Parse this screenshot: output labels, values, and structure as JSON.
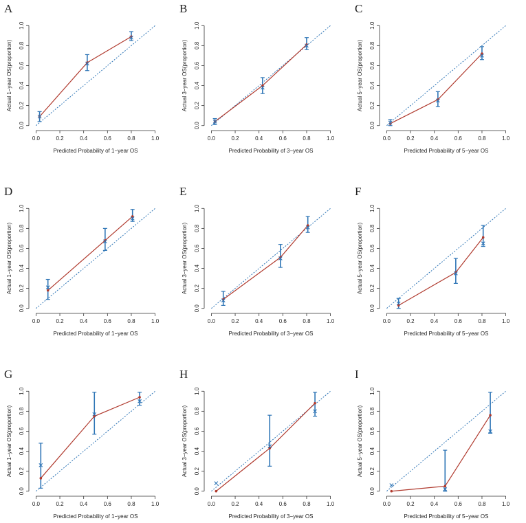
{
  "chart_data": [
    {
      "type": "line",
      "label": "A",
      "xlabel": "Predicted Probability of 1−year OS",
      "ylabel": "Actual 1−year OS(proportion)",
      "xlim": [
        -0.06,
        1.06
      ],
      "ylim": [
        -0.05,
        1.05
      ],
      "xticks": [
        {
          "value": 0,
          "label": "0.0"
        },
        {
          "value": 0.2,
          "label": "0.2"
        },
        {
          "value": 0.4,
          "label": "0.4"
        },
        {
          "value": 0.6,
          "label": "0.6"
        },
        {
          "value": 0.8,
          "label": "0.8"
        },
        {
          "value": 1,
          "label": "1.0"
        }
      ],
      "yticks": [
        {
          "value": 0,
          "label": "0.0"
        },
        {
          "value": 0.2,
          "label": "0.2"
        },
        {
          "value": 0.4,
          "label": "0.4"
        },
        {
          "value": 0.6,
          "label": "0.6"
        },
        {
          "value": 0.8,
          "label": "0.8"
        },
        {
          "value": 1,
          "label": "1.0"
        }
      ],
      "x": [
        0.03,
        0.43,
        0.8
      ],
      "reference_color": "#2e75b6",
      "series": [
        {
          "color": "#b03a2e",
          "values": [
            0.09,
            0.63,
            0.89
          ],
          "error_low": [
            0.04,
            0.55,
            0.85
          ],
          "error_high": [
            0.14,
            0.71,
            0.94
          ]
        },
        {
          "color": "#2e75b6",
          "values": [
            0.09,
            0.62,
            0.88
          ]
        }
      ]
    },
    {
      "type": "line",
      "label": "B",
      "xlabel": "Predicted Probability of 3−year OS",
      "ylabel": "Actual 3−year OS(proportion)",
      "xlim": [
        -0.06,
        1.06
      ],
      "ylim": [
        -0.05,
        1.05
      ],
      "xticks": [
        {
          "value": 0,
          "label": "0.0"
        },
        {
          "value": 0.2,
          "label": "0.2"
        },
        {
          "value": 0.4,
          "label": "0.4"
        },
        {
          "value": 0.6,
          "label": "0.6"
        },
        {
          "value": 0.8,
          "label": "0.8"
        },
        {
          "value": 1,
          "label": "1.0"
        }
      ],
      "yticks": [
        {
          "value": 0,
          "label": "0.0"
        },
        {
          "value": 0.2,
          "label": "0.2"
        },
        {
          "value": 0.4,
          "label": "0.4"
        },
        {
          "value": 0.6,
          "label": "0.6"
        },
        {
          "value": 0.8,
          "label": "0.8"
        },
        {
          "value": 1,
          "label": "1.0"
        }
      ],
      "x": [
        0.03,
        0.43,
        0.8
      ],
      "reference_color": "#2e75b6",
      "series": [
        {
          "color": "#b03a2e",
          "values": [
            0.04,
            0.4,
            0.81
          ],
          "error_low": [
            0.01,
            0.32,
            0.76
          ],
          "error_high": [
            0.07,
            0.48,
            0.88
          ]
        },
        {
          "color": "#2e75b6",
          "values": [
            0.04,
            0.38,
            0.8
          ]
        }
      ]
    },
    {
      "type": "line",
      "label": "C",
      "xlabel": "Predicted Probability of 5−year OS",
      "ylabel": "Actual 5−year OS(proportion)",
      "xlim": [
        -0.06,
        1.06
      ],
      "ylim": [
        -0.05,
        1.05
      ],
      "xticks": [
        {
          "value": 0,
          "label": "0.0"
        },
        {
          "value": 0.2,
          "label": "0.2"
        },
        {
          "value": 0.4,
          "label": "0.4"
        },
        {
          "value": 0.6,
          "label": "0.6"
        },
        {
          "value": 0.8,
          "label": "0.8"
        },
        {
          "value": 1,
          "label": "1.0"
        }
      ],
      "yticks": [
        {
          "value": 0,
          "label": "0.0"
        },
        {
          "value": 0.2,
          "label": "0.2"
        },
        {
          "value": 0.4,
          "label": "0.4"
        },
        {
          "value": 0.6,
          "label": "0.6"
        },
        {
          "value": 0.8,
          "label": "0.8"
        },
        {
          "value": 1,
          "label": "1.0"
        }
      ],
      "x": [
        0.03,
        0.43,
        0.8
      ],
      "reference_color": "#2e75b6",
      "series": [
        {
          "color": "#b03a2e",
          "values": [
            0.02,
            0.26,
            0.72
          ],
          "error_low": [
            0,
            0.19,
            0.66
          ],
          "error_high": [
            0.06,
            0.34,
            0.79
          ]
        },
        {
          "color": "#2e75b6",
          "values": [
            0.03,
            0.25,
            0.7
          ]
        }
      ]
    },
    {
      "type": "line",
      "label": "D",
      "xlabel": "Predicted Probability of 1−year OS",
      "ylabel": "Actual 1−year OS(proportion)",
      "xlim": [
        -0.06,
        1.06
      ],
      "ylim": [
        -0.05,
        1.05
      ],
      "xticks": [
        {
          "value": 0,
          "label": "0.0"
        },
        {
          "value": 0.2,
          "label": "0.2"
        },
        {
          "value": 0.4,
          "label": "0.4"
        },
        {
          "value": 0.6,
          "label": "0.6"
        },
        {
          "value": 0.8,
          "label": "0.8"
        },
        {
          "value": 1,
          "label": "1.0"
        }
      ],
      "yticks": [
        {
          "value": 0,
          "label": "0.0"
        },
        {
          "value": 0.2,
          "label": "0.2"
        },
        {
          "value": 0.4,
          "label": "0.4"
        },
        {
          "value": 0.6,
          "label": "0.6"
        },
        {
          "value": 0.8,
          "label": "0.8"
        },
        {
          "value": 1,
          "label": "1.0"
        }
      ],
      "x": [
        0.1,
        0.58,
        0.81
      ],
      "reference_color": "#2e75b6",
      "series": [
        {
          "color": "#b03a2e",
          "values": [
            0.18,
            0.68,
            0.92
          ],
          "error_low": [
            0.09,
            0.58,
            0.87
          ],
          "error_high": [
            0.29,
            0.8,
            0.99
          ]
        },
        {
          "color": "#2e75b6",
          "values": [
            0.21,
            0.67,
            0.9
          ]
        }
      ]
    },
    {
      "type": "line",
      "label": "E",
      "xlabel": "Predicted Probability of 3−year OS",
      "ylabel": "Actual 3−year OS(proportion)",
      "xlim": [
        -0.06,
        1.06
      ],
      "ylim": [
        -0.05,
        1.05
      ],
      "xticks": [
        {
          "value": 0,
          "label": "0.0"
        },
        {
          "value": 0.2,
          "label": "0.2"
        },
        {
          "value": 0.4,
          "label": "0.4"
        },
        {
          "value": 0.6,
          "label": "0.6"
        },
        {
          "value": 0.8,
          "label": "0.8"
        },
        {
          "value": 1,
          "label": "1.0"
        }
      ],
      "yticks": [
        {
          "value": 0,
          "label": "0.0"
        },
        {
          "value": 0.2,
          "label": "0.2"
        },
        {
          "value": 0.4,
          "label": "0.4"
        },
        {
          "value": 0.6,
          "label": "0.6"
        },
        {
          "value": 0.8,
          "label": "0.8"
        },
        {
          "value": 1,
          "label": "1.0"
        }
      ],
      "x": [
        0.1,
        0.58,
        0.81
      ],
      "reference_color": "#2e75b6",
      "series": [
        {
          "color": "#b03a2e",
          "values": [
            0.09,
            0.51,
            0.83
          ],
          "error_low": [
            0.03,
            0.41,
            0.76
          ],
          "error_high": [
            0.17,
            0.64,
            0.92
          ]
        },
        {
          "color": "#2e75b6",
          "values": [
            0.08,
            0.5,
            0.81
          ]
        }
      ]
    },
    {
      "type": "line",
      "label": "F",
      "xlabel": "Predicted Probability of 5−year OS",
      "ylabel": "Actual 5−year OS(proportion)",
      "xlim": [
        -0.06,
        1.06
      ],
      "ylim": [
        -0.05,
        1.05
      ],
      "xticks": [
        {
          "value": 0,
          "label": "0.0"
        },
        {
          "value": 0.2,
          "label": "0.2"
        },
        {
          "value": 0.4,
          "label": "0.4"
        },
        {
          "value": 0.6,
          "label": "0.6"
        },
        {
          "value": 0.8,
          "label": "0.8"
        },
        {
          "value": 1,
          "label": "1.0"
        }
      ],
      "yticks": [
        {
          "value": 0,
          "label": "0.0"
        },
        {
          "value": 0.2,
          "label": "0.2"
        },
        {
          "value": 0.4,
          "label": "0.4"
        },
        {
          "value": 0.6,
          "label": "0.6"
        },
        {
          "value": 0.8,
          "label": "0.8"
        },
        {
          "value": 1,
          "label": "1.0"
        }
      ],
      "x": [
        0.1,
        0.58,
        0.81
      ],
      "reference_color": "#2e75b6",
      "series": [
        {
          "color": "#b03a2e",
          "values": [
            0.03,
            0.36,
            0.71
          ],
          "error_low": [
            0,
            0.25,
            0.62
          ],
          "error_high": [
            0.1,
            0.5,
            0.83
          ]
        },
        {
          "color": "#2e75b6",
          "values": [
            0.05,
            0.35,
            0.65
          ]
        }
      ]
    },
    {
      "type": "line",
      "label": "G",
      "xlabel": "Predicted Probability of 1−year OS",
      "ylabel": "Actual 1−year OS(proportion)",
      "xlim": [
        -0.06,
        1.06
      ],
      "ylim": [
        -0.05,
        1.05
      ],
      "xticks": [
        {
          "value": 0,
          "label": "0.0"
        },
        {
          "value": 0.2,
          "label": "0.2"
        },
        {
          "value": 0.4,
          "label": "0.4"
        },
        {
          "value": 0.6,
          "label": "0.6"
        },
        {
          "value": 0.8,
          "label": "0.8"
        },
        {
          "value": 1,
          "label": "1.0"
        }
      ],
      "yticks": [
        {
          "value": 0,
          "label": "0.0"
        },
        {
          "value": 0.2,
          "label": "0.2"
        },
        {
          "value": 0.4,
          "label": "0.4"
        },
        {
          "value": 0.6,
          "label": "0.6"
        },
        {
          "value": 0.8,
          "label": "0.8"
        },
        {
          "value": 1,
          "label": "1.0"
        }
      ],
      "x": [
        0.04,
        0.49,
        0.87
      ],
      "reference_color": "#2e75b6",
      "series": [
        {
          "color": "#b03a2e",
          "values": [
            0.13,
            0.75,
            0.94
          ],
          "error_low": [
            0.03,
            0.57,
            0.86
          ],
          "error_high": [
            0.48,
            0.99,
            0.99
          ]
        },
        {
          "color": "#2e75b6",
          "values": [
            0.26,
            0.77,
            0.9
          ]
        }
      ]
    },
    {
      "type": "line",
      "label": "H",
      "xlabel": "Predicted Probability of 3−year OS",
      "ylabel": "Actual 3−year OS(proportion)",
      "xlim": [
        -0.06,
        1.06
      ],
      "ylim": [
        -0.05,
        1.05
      ],
      "xticks": [
        {
          "value": 0,
          "label": "0.0"
        },
        {
          "value": 0.2,
          "label": "0.2"
        },
        {
          "value": 0.4,
          "label": "0.4"
        },
        {
          "value": 0.6,
          "label": "0.6"
        },
        {
          "value": 0.8,
          "label": "0.8"
        },
        {
          "value": 1,
          "label": "1.0"
        }
      ],
      "yticks": [
        {
          "value": 0,
          "label": "0.0"
        },
        {
          "value": 0.2,
          "label": "0.2"
        },
        {
          "value": 0.4,
          "label": "0.4"
        },
        {
          "value": 0.6,
          "label": "0.6"
        },
        {
          "value": 0.8,
          "label": "0.8"
        },
        {
          "value": 1,
          "label": "1.0"
        }
      ],
      "x": [
        0.04,
        0.49,
        0.87
      ],
      "reference_color": "#2e75b6",
      "series": [
        {
          "color": "#b03a2e",
          "values": [
            0,
            0.43,
            0.88
          ],
          "error_low": [
            null,
            0.25,
            0.75
          ],
          "error_high": [
            null,
            0.76,
            0.99
          ]
        },
        {
          "color": "#2e75b6",
          "values": [
            0.08,
            0.45,
            0.8
          ]
        }
      ]
    },
    {
      "type": "line",
      "label": "I",
      "xlabel": "Predicted Probability of 5−year OS",
      "ylabel": "Actual 5−year OS(proportion)",
      "xlim": [
        -0.06,
        1.06
      ],
      "ylim": [
        -0.05,
        1.05
      ],
      "xticks": [
        {
          "value": 0,
          "label": "0.0"
        },
        {
          "value": 0.2,
          "label": "0.2"
        },
        {
          "value": 0.4,
          "label": "0.4"
        },
        {
          "value": 0.6,
          "label": "0.6"
        },
        {
          "value": 0.8,
          "label": "0.8"
        },
        {
          "value": 1,
          "label": "1.0"
        }
      ],
      "yticks": [
        {
          "value": 0,
          "label": "0.0"
        },
        {
          "value": 0.2,
          "label": "0.2"
        },
        {
          "value": 0.4,
          "label": "0.4"
        },
        {
          "value": 0.6,
          "label": "0.6"
        },
        {
          "value": 0.8,
          "label": "0.8"
        },
        {
          "value": 1,
          "label": "1.0"
        }
      ],
      "x": [
        0.04,
        0.49,
        0.87
      ],
      "reference_color": "#2e75b6",
      "series": [
        {
          "color": "#b03a2e",
          "values": [
            0,
            0.05,
            0.76
          ],
          "error_low": [
            null,
            0,
            0.58
          ],
          "error_high": [
            null,
            0.41,
            0.99
          ]
        },
        {
          "color": "#2e75b6",
          "values": [
            0.06,
            0.02,
            0.6
          ]
        }
      ]
    }
  ]
}
